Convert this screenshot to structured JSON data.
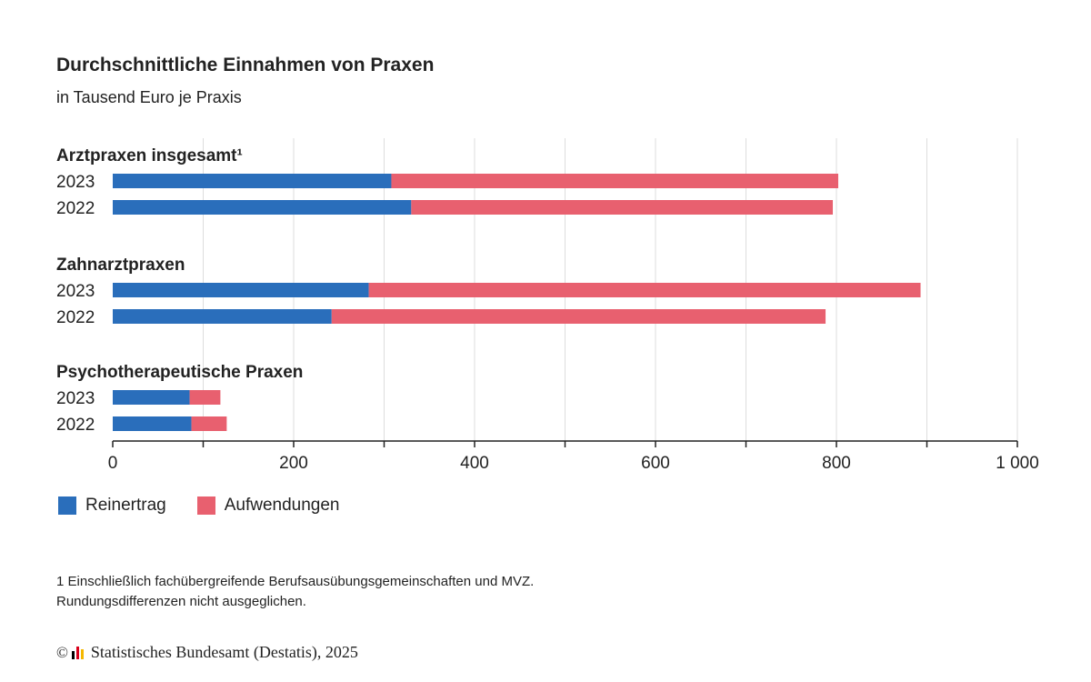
{
  "title": "Durchschnittliche Einnahmen von Praxen",
  "subtitle": "in Tausend Euro je Praxis",
  "chart_data": {
    "type": "bar",
    "orientation": "horizontal",
    "stacked": true,
    "groups": [
      {
        "label": "Arztpraxen insgesamt¹",
        "categories": [
          "2023",
          "2022"
        ]
      },
      {
        "label": "Zahnarztpraxen",
        "categories": [
          "2023",
          "2022"
        ]
      },
      {
        "label": "Psychotherapeutische Praxen",
        "categories": [
          "2023",
          "2022"
        ]
      }
    ],
    "series": [
      {
        "name": "Reinertrag",
        "color": "#2a6ebb",
        "values": [
          [
            308,
            330
          ],
          [
            283,
            242
          ],
          [
            85,
            87
          ]
        ]
      },
      {
        "name": "Aufwendungen",
        "color": "#e8606f",
        "values": [
          [
            494,
            466
          ],
          [
            610,
            546
          ],
          [
            34,
            39
          ]
        ]
      }
    ],
    "xlim": [
      0,
      1000
    ],
    "xticks": [
      0,
      200,
      400,
      600,
      800,
      1000
    ],
    "xtick_labels": [
      "0",
      "200",
      "400",
      "600",
      "800",
      "1 000"
    ],
    "grid": true,
    "legend_position": "bottom-left"
  },
  "footnotes": [
    "1 Einschließlich fachübergreifende Berufsausübungsgemeinschaften und MVZ.",
    "Rundungsdifferenzen nicht ausgeglichen."
  ],
  "source": {
    "copyright_symbol": "©",
    "text": "Statistisches Bundesamt (Destatis), 2025",
    "logo_icon": "destatis-logo-icon",
    "logo_colors": [
      "#000000",
      "#d9001b",
      "#f5b800"
    ]
  }
}
